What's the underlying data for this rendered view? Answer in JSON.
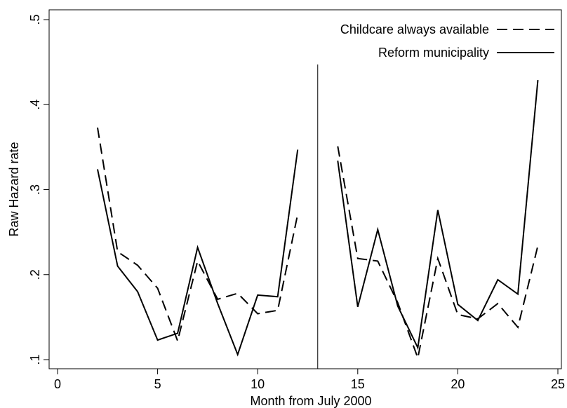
{
  "chart_data": {
    "type": "line",
    "title": "",
    "xlabel": "Month from July 2000",
    "ylabel": "Raw Hazard rate",
    "xlim": [
      0,
      25
    ],
    "ylim": [
      0.1,
      0.5
    ],
    "xticks": [
      0,
      5,
      10,
      15,
      20,
      25
    ],
    "xtick_labels": [
      "0",
      "5",
      "10",
      "15",
      "20",
      "25"
    ],
    "yticks": [
      0.1,
      0.2,
      0.3,
      0.4,
      0.5
    ],
    "ytick_labels": [
      ".1",
      ".2",
      ".3",
      ".4",
      ".5"
    ],
    "grid": false,
    "legend_position": "top-right",
    "vertical_reference_line_x": 13,
    "series": [
      {
        "name": "Childcare always available",
        "style": "dashed",
        "color": "#000000",
        "segments": [
          {
            "x": [
              2,
              3,
              4,
              5,
              6,
              7,
              8,
              9,
              10,
              11,
              12
            ],
            "y": [
              0.373,
              0.227,
              0.211,
              0.184,
              0.122,
              0.216,
              0.171,
              0.178,
              0.154,
              0.158,
              0.271
            ]
          },
          {
            "x": [
              14,
              15,
              16,
              17,
              18,
              19,
              20,
              21,
              22,
              23,
              24
            ],
            "y": [
              0.351,
              0.219,
              0.216,
              0.167,
              0.102,
              0.219,
              0.153,
              0.148,
              0.166,
              0.138,
              0.234
            ]
          }
        ]
      },
      {
        "name": "Reform municipality",
        "style": "solid",
        "color": "#000000",
        "segments": [
          {
            "x": [
              2,
              3,
              4,
              5,
              6,
              7,
              8,
              9,
              10,
              11,
              12
            ],
            "y": [
              0.324,
              0.21,
              0.18,
              0.123,
              0.131,
              0.232,
              0.166,
              0.106,
              0.176,
              0.174,
              0.347
            ]
          },
          {
            "x": [
              14,
              15,
              16,
              17,
              18,
              19,
              20,
              21,
              22,
              23,
              24
            ],
            "y": [
              0.334,
              0.162,
              0.253,
              0.163,
              0.114,
              0.276,
              0.165,
              0.146,
              0.194,
              0.177,
              0.429
            ]
          }
        ]
      }
    ]
  }
}
